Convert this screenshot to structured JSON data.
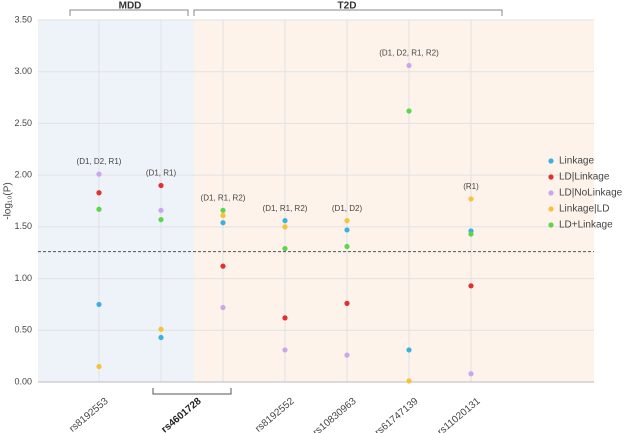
{
  "chart_data": {
    "type": "scatter",
    "categories": [
      "rs8192553",
      "rs4601728",
      null,
      "rs8192552",
      "rs10830963",
      "rs61747139",
      "rs11020131"
    ],
    "annotations": [
      "(D1, D2, R1)",
      "(D1, R1)",
      "(D1, R1, R2)",
      "(D1, R1, R2)",
      "(D1, D2)",
      "(D1, D2, R1, R2)",
      "(R1)"
    ],
    "groups": [
      "MDD",
      "T2D"
    ],
    "ylabel": "-log₁₀(P)",
    "threshold": 1.26,
    "ylim": [
      0,
      3.5
    ],
    "yticks": [
      {
        "value": 0,
        "label": "0.00"
      },
      {
        "value": 0.5,
        "label": "0.50"
      },
      {
        "value": 1,
        "label": "1.00"
      },
      {
        "value": 1.5,
        "label": "1.50"
      },
      {
        "value": 2,
        "label": "2.00"
      },
      {
        "value": 2.5,
        "label": "2.50"
      },
      {
        "value": 3,
        "label": "3.00"
      },
      {
        "value": 3.5,
        "label": "3.50"
      }
    ],
    "grid": true,
    "legend": "right",
    "series": [
      {
        "name": "Linkage",
        "color": "#3bb1e0",
        "values": [
          0.75,
          0.43,
          1.54,
          1.56,
          1.47,
          0.31,
          1.46
        ]
      },
      {
        "name": "LD|Linkage",
        "color": "#e03030",
        "values": [
          1.83,
          1.9,
          1.12,
          0.62,
          0.76,
          null,
          0.93
        ]
      },
      {
        "name": "LD|NoLinkage",
        "color": "#c9a6f0",
        "values": [
          2.01,
          1.66,
          0.72,
          0.31,
          0.26,
          3.06,
          0.08
        ]
      },
      {
        "name": "Linkage|LD",
        "color": "#f7c23a",
        "values": [
          0.15,
          0.51,
          1.61,
          1.5,
          1.56,
          0.01,
          1.77
        ]
      },
      {
        "name": "LD+Linkage",
        "color": "#5ed64a",
        "values": [
          1.67,
          1.57,
          1.66,
          1.29,
          1.31,
          2.62,
          1.43
        ]
      }
    ]
  }
}
